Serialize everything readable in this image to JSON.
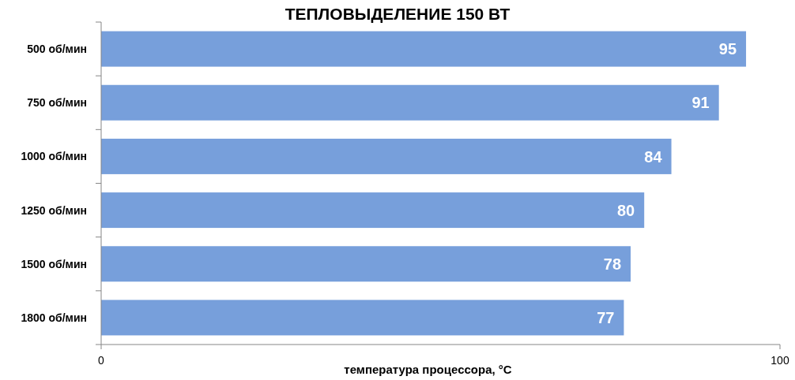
{
  "chart_data": {
    "type": "bar",
    "orientation": "horizontal",
    "title": "ТЕПЛОВЫДЕЛЕНИЕ 150 ВТ",
    "xlabel": "температура процессора, °C",
    "categories": [
      "500 об/мин",
      "750 об/мин",
      "1000 об/мин",
      "1250 об/мин",
      "1500 об/мин",
      "1800 об/мин"
    ],
    "values": [
      95,
      91,
      84,
      80,
      78,
      77
    ],
    "color": "#779fdb",
    "xlim": [
      0,
      100
    ],
    "xticks": [
      0,
      100
    ],
    "data_labels": true
  }
}
